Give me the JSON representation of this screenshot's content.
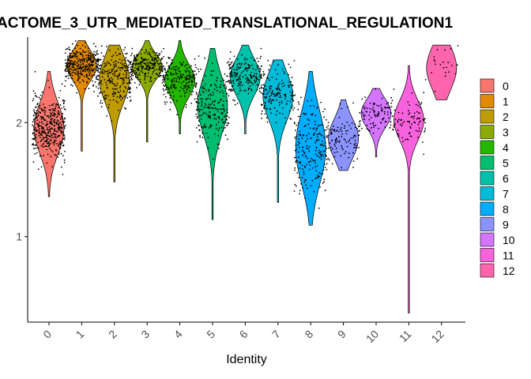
{
  "chart_data": {
    "type": "violin",
    "title": "ACTOME_3_UTR_MEDIATED_TRANSLATIONAL_REGULATION1",
    "xlabel": "Identity",
    "ylabel": "",
    "ylim": [
      0.25,
      2.75
    ],
    "yticks": [
      1,
      2
    ],
    "categories": [
      "0",
      "1",
      "2",
      "3",
      "4",
      "5",
      "6",
      "7",
      "8",
      "9",
      "10",
      "11",
      "12"
    ],
    "colors": [
      "#F8766D",
      "#E18A00",
      "#BE9C00",
      "#8CAB00",
      "#24B700",
      "#00BE70",
      "#00C1AB",
      "#00BBDA",
      "#00ACFC",
      "#8B93FF",
      "#D575FE",
      "#F962DD",
      "#FF65AC"
    ],
    "series": [
      {
        "name": "0",
        "min": 1.35,
        "max": 2.45,
        "median": 1.95,
        "spread": 0.14,
        "n": 420
      },
      {
        "name": "1",
        "min": 1.75,
        "max": 2.72,
        "median": 2.5,
        "spread": 0.08,
        "n": 340
      },
      {
        "name": "2",
        "min": 1.48,
        "max": 2.68,
        "median": 2.38,
        "spread": 0.13,
        "n": 260
      },
      {
        "name": "3",
        "min": 1.83,
        "max": 2.72,
        "median": 2.49,
        "spread": 0.07,
        "n": 240
      },
      {
        "name": "4",
        "min": 1.9,
        "max": 2.72,
        "median": 2.37,
        "spread": 0.09,
        "n": 200
      },
      {
        "name": "5",
        "min": 1.15,
        "max": 2.65,
        "median": 2.15,
        "spread": 0.16,
        "n": 220
      },
      {
        "name": "6",
        "min": 1.9,
        "max": 2.68,
        "median": 2.4,
        "spread": 0.1,
        "n": 200
      },
      {
        "name": "7",
        "min": 1.3,
        "max": 2.55,
        "median": 2.23,
        "spread": 0.13,
        "n": 160
      },
      {
        "name": "8",
        "min": 1.1,
        "max": 2.45,
        "median": 1.78,
        "spread": 0.2,
        "n": 210
      },
      {
        "name": "9",
        "min": 1.58,
        "max": 2.2,
        "median": 1.86,
        "spread": 0.11,
        "n": 110
      },
      {
        "name": "10",
        "min": 1.7,
        "max": 2.3,
        "median": 2.08,
        "spread": 0.08,
        "n": 100
      },
      {
        "name": "11",
        "min": 0.33,
        "max": 2.5,
        "median": 2.02,
        "spread": 0.11,
        "n": 90
      },
      {
        "name": "12",
        "min": 2.2,
        "max": 2.68,
        "median": 2.48,
        "spread": 0.12,
        "n": 22
      }
    ],
    "legend": {
      "position": "right",
      "entries": [
        "0",
        "1",
        "2",
        "3",
        "4",
        "5",
        "6",
        "7",
        "8",
        "9",
        "10",
        "11",
        "12"
      ]
    },
    "grid": false
  }
}
